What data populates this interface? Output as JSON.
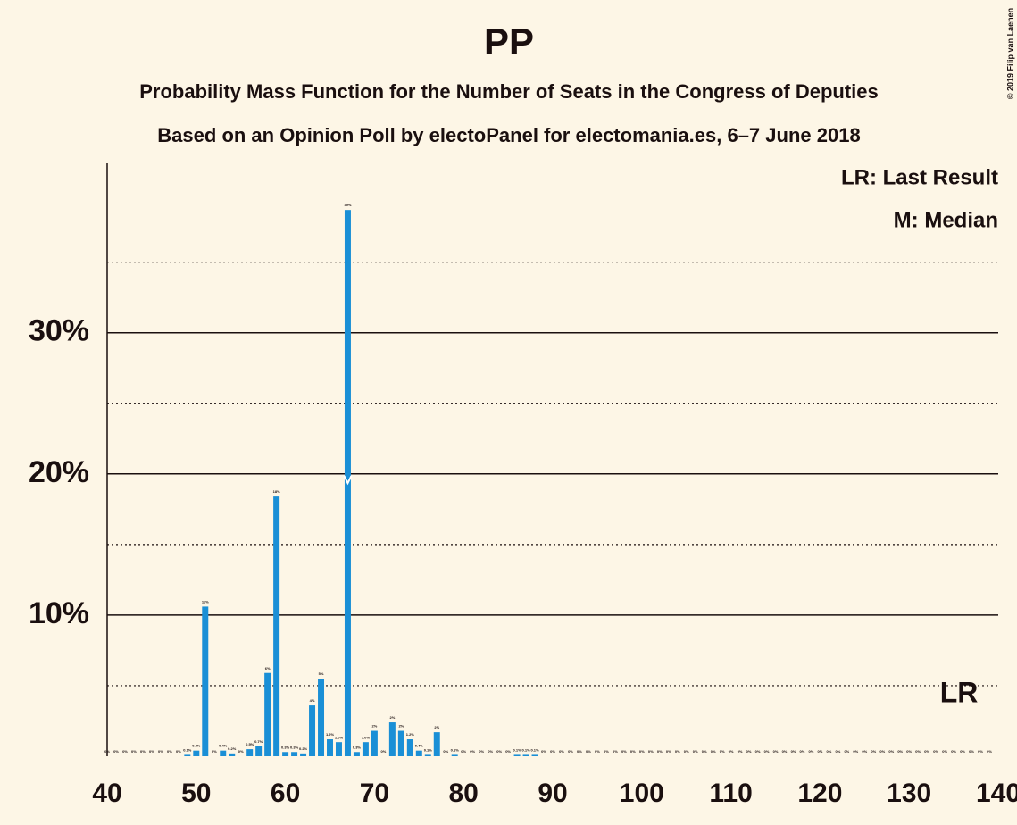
{
  "chart_data": {
    "type": "bar",
    "title": "PP",
    "subtitle": "Probability Mass Function for the Number of Seats in the Congress of Deputies",
    "subtitle2": "Based on an Opinion Poll by electoPanel for electomania.es, 6–7 June 2018",
    "copyright": "© 2019 Filip van Laenen",
    "legend_lr": "LR: Last Result",
    "legend_median": "M: Median",
    "lr_label": "LR",
    "last_result": 137,
    "median": 67,
    "color": "#1a8fd6",
    "x": [
      40,
      41,
      42,
      43,
      44,
      45,
      46,
      47,
      48,
      49,
      50,
      51,
      52,
      53,
      54,
      55,
      56,
      57,
      58,
      59,
      60,
      61,
      62,
      63,
      64,
      65,
      66,
      67,
      68,
      69,
      70,
      71,
      72,
      73,
      74,
      75,
      76,
      77,
      78,
      79,
      80,
      81,
      82,
      83,
      84,
      85,
      86,
      87,
      88,
      89,
      90,
      91,
      92,
      93,
      94,
      95,
      96,
      97,
      98,
      99,
      100,
      101,
      102,
      103,
      104,
      105,
      106,
      107,
      108,
      109,
      110,
      111,
      112,
      113,
      114,
      115,
      116,
      117,
      118,
      119,
      120,
      121,
      122,
      123,
      124,
      125,
      126,
      127,
      128,
      129,
      130,
      131,
      132,
      133,
      134,
      135,
      136,
      137,
      138,
      139
    ],
    "values": [
      0,
      0,
      0,
      0,
      0,
      0,
      0,
      0,
      0,
      0.1,
      0.4,
      10.6,
      0,
      0.4,
      0.2,
      0,
      0.5,
      0.7,
      5.9,
      18.4,
      0.3,
      0.3,
      0.2,
      3.6,
      5.5,
      1.2,
      1.0,
      38.7,
      0.3,
      1.0,
      1.8,
      0,
      2.4,
      1.8,
      1.2,
      0.4,
      0.1,
      1.7,
      0,
      0.1,
      0,
      0,
      0,
      0,
      0,
      0,
      0.1,
      0.1,
      0.1,
      0,
      0,
      0,
      0,
      0,
      0,
      0,
      0,
      0,
      0,
      0,
      0,
      0,
      0,
      0,
      0,
      0,
      0,
      0,
      0,
      0,
      0,
      0,
      0,
      0,
      0,
      0,
      0,
      0,
      0,
      0,
      0,
      0,
      0,
      0,
      0,
      0,
      0,
      0,
      0,
      0,
      0,
      0,
      0,
      0,
      0,
      0,
      0,
      0,
      0,
      0
    ],
    "value_labels": [
      "0%",
      "0%",
      "0%",
      "0%",
      "0%",
      "0%",
      "0%",
      "0%",
      "0%",
      "0.1%",
      "0.4%",
      "11%",
      "0%",
      "0.4%",
      "0.2%",
      "0%",
      "0.5%",
      "0.7%",
      "6%",
      "18%",
      "0.3%",
      "0.3%",
      "0.2%",
      "4%",
      "5%",
      "1.2%",
      "1.0%",
      "39%",
      "0.3%",
      "1.0%",
      "2%",
      "0%",
      "2%",
      "2%",
      "1.2%",
      "0.4%",
      "0.1%",
      "2%",
      "0%",
      "0.1%",
      "0%",
      "0%",
      "0%",
      "0%",
      "0%",
      "0%",
      "0.1%",
      "0.1%",
      "0.1%",
      "0%",
      "0%",
      "0%",
      "0%",
      "0%",
      "0%",
      "0%",
      "0%",
      "0%",
      "0%",
      "0%",
      "0%",
      "0%",
      "0%",
      "0%",
      "0%",
      "0%",
      "0%",
      "0%",
      "0%",
      "0%",
      "0%",
      "0%",
      "0%",
      "0%",
      "0%",
      "0%",
      "0%",
      "0%",
      "0%",
      "0%",
      "0%",
      "0%",
      "0%",
      "0%",
      "0%",
      "0%",
      "0%",
      "0%",
      "0%",
      "0%",
      "0%",
      "0%",
      "0%",
      "0%",
      "0%",
      "0%",
      "0%",
      "0%",
      "0%",
      "0%"
    ],
    "xlim": [
      40,
      140
    ],
    "xticks": [
      40,
      50,
      60,
      70,
      80,
      90,
      100,
      110,
      120,
      130,
      140
    ],
    "ylim": [
      0,
      42
    ],
    "yticks": [
      {
        "value": 10,
        "label": "10%"
      },
      {
        "value": 20,
        "label": "20%"
      },
      {
        "value": 30,
        "label": "30%"
      }
    ],
    "minor_yticks": [
      5,
      15,
      25,
      35
    ],
    "grid": true
  }
}
